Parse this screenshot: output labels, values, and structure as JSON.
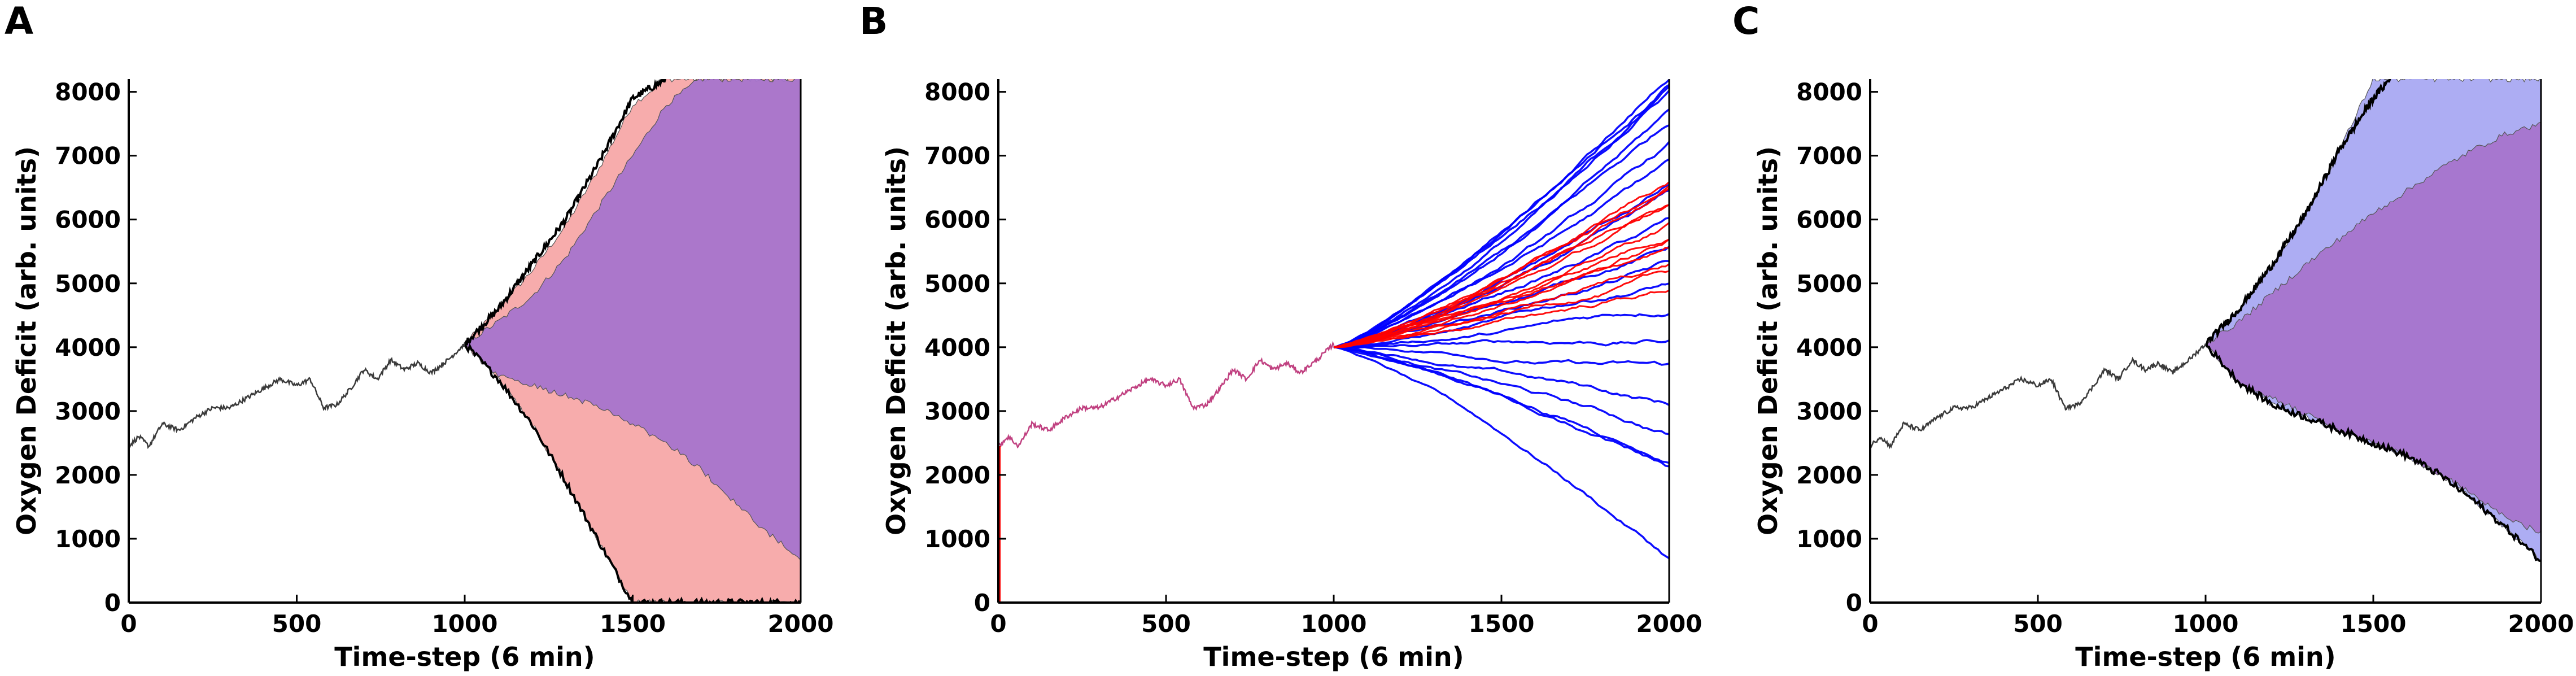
{
  "colors": {
    "observed": "#3a3a3a",
    "band_A_outer": "#f7a8a8",
    "band_A_inner": "#a774cc",
    "band_C_outer": "#a9a9f2",
    "band_C_inner": "#a774cc",
    "trajectory_blue": "#0000ff",
    "trajectory_red": "#ff0000",
    "bound_black": "#000000"
  },
  "chart_data": [
    {
      "panel": "A",
      "type": "area",
      "xlabel": "Time-step (6 min)",
      "ylabel": "Oxygen Deficit (arb. units)",
      "xlim": [
        0,
        2000
      ],
      "ylim": [
        0,
        8200
      ],
      "xticks": [
        0,
        500,
        1000,
        1500,
        2000
      ],
      "yticks": [
        0,
        1000,
        2000,
        3000,
        4000,
        5000,
        6000,
        7000,
        8000
      ],
      "observed": {
        "x": [
          0,
          30,
          60,
          100,
          150,
          200,
          250,
          300,
          350,
          400,
          450,
          500,
          540,
          580,
          620,
          660,
          700,
          740,
          780,
          820,
          860,
          900,
          950,
          1000
        ],
        "y": [
          2450,
          2600,
          2450,
          2800,
          2700,
          2900,
          3050,
          3050,
          3200,
          3350,
          3500,
          3400,
          3500,
          3050,
          3100,
          3350,
          3650,
          3500,
          3800,
          3650,
          3750,
          3600,
          3800,
          4050
        ]
      },
      "bands": [
        {
          "color_key": "band_A_outer",
          "x": [
            1000,
            1100,
            1200,
            1300,
            1400,
            1500,
            1600,
            1700,
            1800,
            1900,
            2000
          ],
          "upper": [
            4050,
            4600,
            5200,
            5900,
            6800,
            7800,
            8200,
            8200,
            8200,
            8200,
            8200
          ],
          "lower": [
            4050,
            3500,
            2800,
            1900,
            950,
            0,
            0,
            0,
            0,
            0,
            0
          ]
        },
        {
          "color_key": "band_A_inner",
          "x": [
            1000,
            1100,
            1200,
            1300,
            1400,
            1500,
            1600,
            1700,
            1800,
            1900,
            2000
          ],
          "upper": [
            4050,
            4400,
            4800,
            5400,
            6200,
            7000,
            7800,
            8200,
            8200,
            8200,
            8200
          ],
          "lower": [
            4050,
            3550,
            3400,
            3250,
            3050,
            2800,
            2500,
            2100,
            1600,
            1100,
            700
          ]
        }
      ],
      "bound_lines": [
        {
          "x": [
            1000,
            1100,
            1200,
            1300,
            1400,
            1500,
            1600
          ],
          "y": [
            4050,
            4600,
            5300,
            6000,
            6900,
            7900,
            8200
          ]
        },
        {
          "x": [
            1000,
            1100,
            1200,
            1300,
            1400,
            1500,
            1600,
            1700,
            1800,
            1900,
            2000
          ],
          "y": [
            4050,
            3500,
            2800,
            1900,
            950,
            0,
            0,
            0,
            0,
            0,
            0
          ]
        }
      ]
    },
    {
      "panel": "B",
      "type": "line",
      "xlabel": "Time-step (6 min)",
      "ylabel": "Oxygen Deficit (arb. units)",
      "xlim": [
        0,
        2000
      ],
      "ylim": [
        0,
        8200
      ],
      "xticks": [
        0,
        500,
        1000,
        1500,
        2000
      ],
      "yticks": [
        0,
        1000,
        2000,
        3000,
        4000,
        5000,
        6000,
        7000,
        8000
      ],
      "observed": {
        "x": [
          0,
          30,
          60,
          100,
          150,
          200,
          250,
          300,
          350,
          400,
          450,
          500,
          540,
          580,
          620,
          660,
          700,
          740,
          780,
          820,
          860,
          900,
          950,
          1000
        ],
        "y": [
          2450,
          2600,
          2450,
          2800,
          2700,
          2900,
          3050,
          3050,
          3200,
          3350,
          3500,
          3400,
          3500,
          3050,
          3100,
          3350,
          3650,
          3500,
          3800,
          3650,
          3750,
          3600,
          3800,
          4050
        ]
      },
      "trajectory_groups": [
        {
          "color_key": "trajectory_blue",
          "start": [
            1000,
            4000
          ],
          "end_x": 2000,
          "end_values": [
            700,
            2000,
            2300,
            2600,
            3100,
            3700,
            4100,
            4600,
            5000,
            5300,
            5600,
            5900,
            6200,
            6500,
            6800,
            7100,
            7400,
            7700,
            8000,
            8200,
            8200,
            8200
          ]
        },
        {
          "color_key": "trajectory_red",
          "start": [
            1000,
            4000
          ],
          "end_x": 2000,
          "end_values": [
            4900,
            5100,
            5300,
            5500,
            5700,
            5850,
            6000,
            6150,
            6300,
            6450,
            6600,
            6700
          ]
        }
      ]
    },
    {
      "panel": "C",
      "type": "area",
      "xlabel": "Time-step (6 min)",
      "ylabel": "Oxygen Deficit (arb. units)",
      "xlim": [
        0,
        2000
      ],
      "ylim": [
        0,
        8200
      ],
      "xticks": [
        0,
        500,
        1000,
        1500,
        2000
      ],
      "yticks": [
        0,
        1000,
        2000,
        3000,
        4000,
        5000,
        6000,
        7000,
        8000
      ],
      "observed": {
        "x": [
          0,
          30,
          60,
          100,
          150,
          200,
          250,
          300,
          350,
          400,
          450,
          500,
          540,
          580,
          620,
          660,
          700,
          740,
          780,
          820,
          860,
          900,
          950,
          1000
        ],
        "y": [
          2450,
          2600,
          2450,
          2800,
          2700,
          2900,
          3050,
          3050,
          3200,
          3350,
          3500,
          3400,
          3500,
          3050,
          3100,
          3350,
          3650,
          3500,
          3800,
          3650,
          3750,
          3600,
          3800,
          4050
        ]
      },
      "bands": [
        {
          "color_key": "band_C_outer",
          "x": [
            1000,
            1100,
            1200,
            1300,
            1400,
            1500,
            1600,
            1700,
            1800,
            1900,
            2000
          ],
          "upper": [
            4050,
            4600,
            5300,
            6100,
            7100,
            8200,
            8200,
            8200,
            8200,
            8200,
            8200
          ],
          "lower": [
            4050,
            3450,
            3100,
            2900,
            2700,
            2500,
            2300,
            2000,
            1600,
            1150,
            650
          ]
        },
        {
          "color_key": "band_C_inner",
          "x": [
            1000,
            1100,
            1200,
            1300,
            1400,
            1500,
            1600,
            1700,
            1800,
            1900,
            2000
          ],
          "upper": [
            4050,
            4400,
            4850,
            5300,
            5700,
            6100,
            6450,
            6800,
            7100,
            7350,
            7500
          ],
          "lower": [
            4050,
            3400,
            3200,
            2950,
            2700,
            2500,
            2300,
            2000,
            1700,
            1300,
            1100
          ]
        }
      ],
      "bound_lines": [
        {
          "x": [
            1000,
            1100,
            1200,
            1300,
            1400,
            1500,
            1550
          ],
          "y": [
            4050,
            4600,
            5300,
            6100,
            7100,
            7900,
            8200
          ]
        },
        {
          "x": [
            1000,
            1100,
            1200,
            1300,
            1400,
            1500,
            1600,
            1700,
            1800,
            1900,
            2000
          ],
          "y": [
            4050,
            3450,
            3100,
            2900,
            2700,
            2500,
            2300,
            2000,
            1600,
            1150,
            650
          ]
        }
      ]
    }
  ]
}
